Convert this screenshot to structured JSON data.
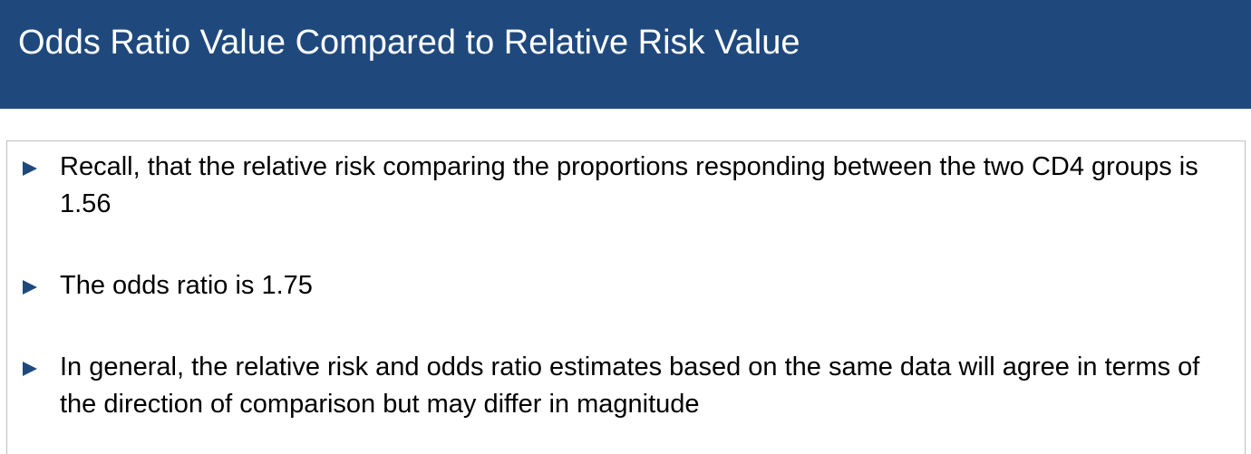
{
  "slide": {
    "title": "Odds Ratio Value Compared to Relative Risk Value",
    "colors": {
      "header_background": "#1f497d",
      "title_text": "#ffffff",
      "bullet_marker": "#1f497d",
      "body_text": "#000000"
    },
    "bullet_marker_icon": "right-triangle-icon",
    "bullets": [
      {
        "text": "Recall, that the relative risk comparing the proportions responding between the two CD4 groups is 1.56"
      },
      {
        "text": "The odds ratio is 1.75"
      },
      {
        "text": "In general, the relative risk and odds ratio estimates based on the same data will agree in terms of the direction of comparison but may differ in magnitude"
      }
    ]
  }
}
